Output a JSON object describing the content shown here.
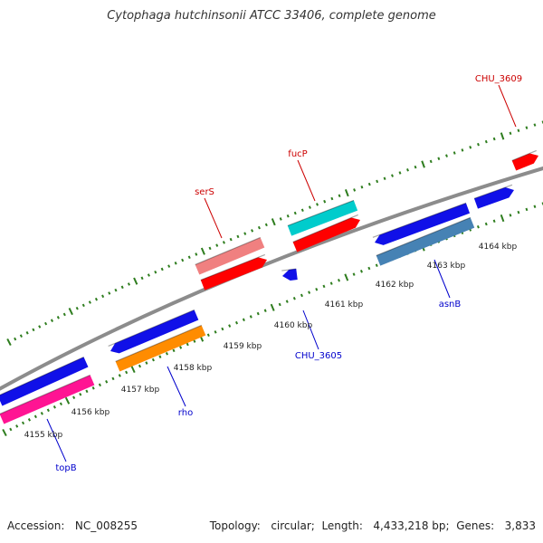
{
  "title": "Cytophaga hutchinsonii ATCC 33406, complete genome",
  "footer": {
    "accession_label": "Accession:",
    "accession": "NC_008255",
    "topology_label": "Topology:",
    "topology": "circular",
    "length_label": "Length:",
    "length": "4,433,218 bp",
    "genes_label": "Genes:",
    "genes": "3,833"
  },
  "colors": {
    "backbone": "#8c8c8c",
    "tick_dots": "#2e7d1e",
    "label_forward": "#cc0000",
    "label_reverse": "#0000cc"
  },
  "scale_labels": [
    "4155 kbp",
    "4156 kbp",
    "4157 kbp",
    "4158 kbp",
    "4159 kbp",
    "4160 kbp",
    "4161 kbp",
    "4162 kbp",
    "4163 kbp",
    "4164 kbp"
  ],
  "features": [
    {
      "name": "topB",
      "strand": "-",
      "color": "#ff1493",
      "labeled": true
    },
    {
      "name": "",
      "strand": "-",
      "color": "#1010e8",
      "labeled": false
    },
    {
      "name": "rho",
      "strand": "-",
      "color": "#ff8c00",
      "labeled": true
    },
    {
      "name": "",
      "strand": "-",
      "color": "#1010e8",
      "labeled": false
    },
    {
      "name": "CHU_3605",
      "strand": "-",
      "color": "#1010e8",
      "labeled": true
    },
    {
      "name": "serS",
      "strand": "+",
      "color": "#f08080",
      "labeled": true
    },
    {
      "name": "",
      "strand": "+",
      "color": "#ff0000",
      "labeled": false
    },
    {
      "name": "fucP",
      "strand": "+",
      "color": "#00cccc",
      "labeled": true
    },
    {
      "name": "",
      "strand": "+",
      "color": "#ff0000",
      "labeled": false
    },
    {
      "name": "asnB",
      "strand": "-",
      "color": "#4682b4",
      "labeled": true
    },
    {
      "name": "",
      "strand": "-",
      "color": "#1010e8",
      "labeled": false
    },
    {
      "name": "",
      "strand": "-",
      "color": "#1010e8",
      "labeled": false
    },
    {
      "name": "CHU_3609",
      "strand": "+",
      "color": "#ff0000",
      "labeled": true
    }
  ]
}
